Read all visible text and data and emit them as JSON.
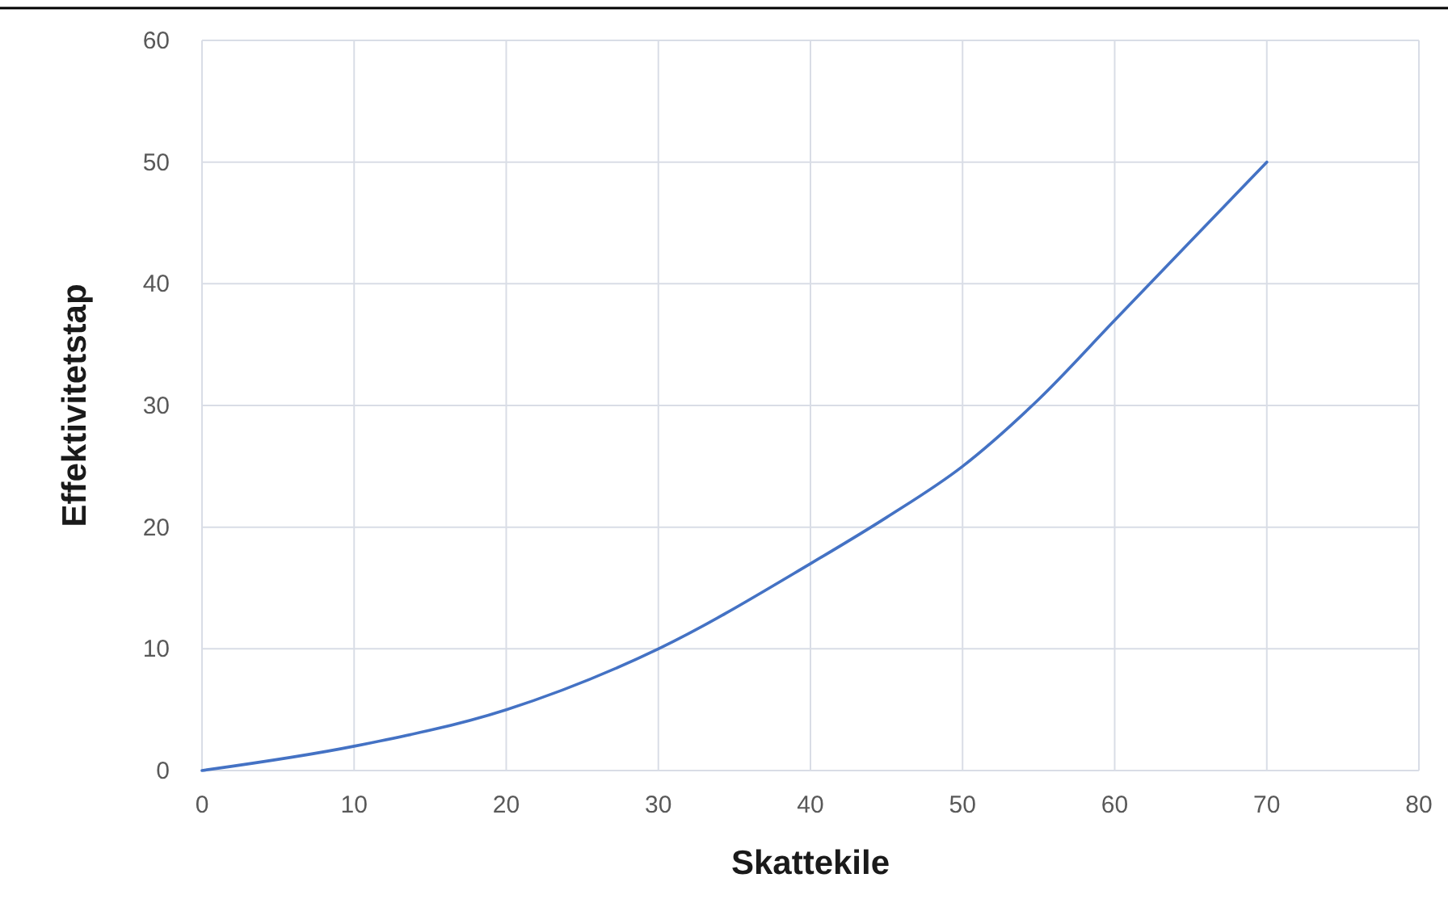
{
  "chart_data": {
    "type": "line",
    "xlabel": "Skattekile",
    "ylabel": "Effektivitetstap",
    "x": [
      0,
      10,
      20,
      30,
      40,
      45,
      50,
      55,
      60,
      70
    ],
    "series": [
      {
        "color": "#4472c4",
        "values": [
          0,
          2,
          5,
          10,
          17,
          20.8,
          25,
          30.5,
          37,
          50
        ]
      }
    ],
    "xlim": [
      0,
      80
    ],
    "xticks": [
      0,
      10,
      20,
      30,
      40,
      50,
      60,
      70,
      80
    ],
    "ylim": [
      0,
      60
    ],
    "yticks": [
      0,
      10,
      20,
      30,
      40,
      50,
      60
    ],
    "grid": true,
    "marker": "none",
    "line_style": "solid"
  }
}
